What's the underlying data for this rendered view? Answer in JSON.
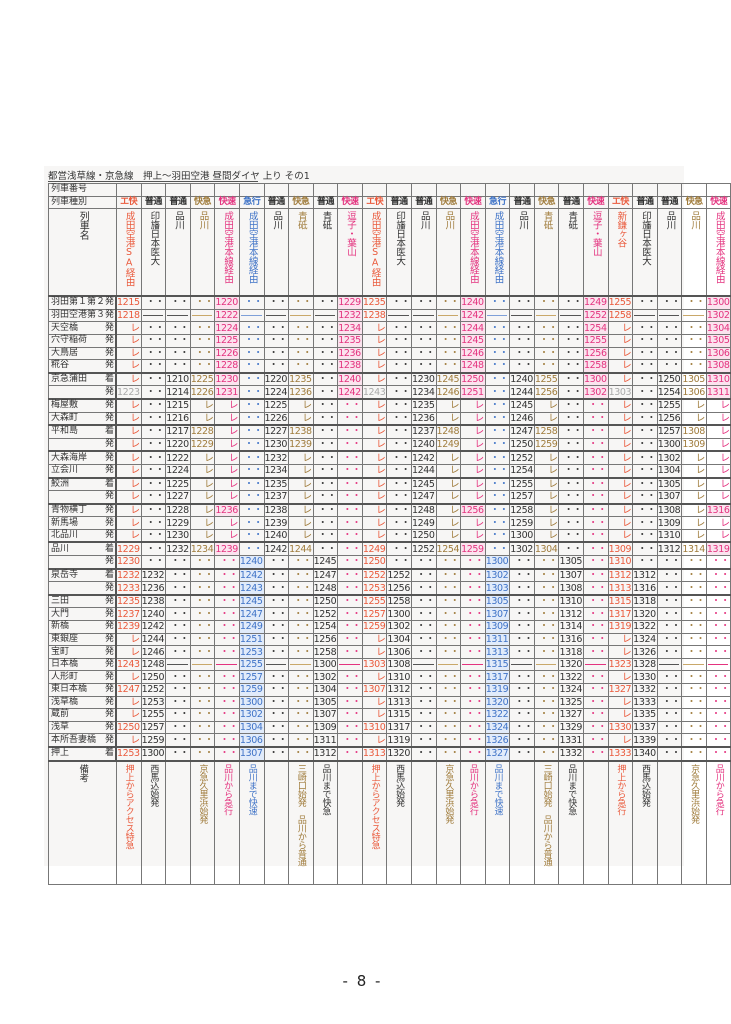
{
  "title": "都営浅草線・京急線　押上～羽田空港 昼間ダイヤ 上り その1",
  "row_labels": {
    "train_number": "列車番号",
    "train_type": "列車種別",
    "train_name": "列車名",
    "remarks": "備考"
  },
  "colors": {
    "orange": "#ea5a3c",
    "black": "#333333",
    "brown": "#a07c3c",
    "pink": "#e4337f",
    "blue": "#3f73c7"
  },
  "trains": [
    {
      "type": "エ快",
      "color": "orange",
      "dest": "成田空港SA経由",
      "remark": "押上からアクセス特急"
    },
    {
      "type": "普通",
      "color": "black",
      "dest": "印旛日本医大",
      "remark": "西馬込始発"
    },
    {
      "type": "普通",
      "color": "black",
      "dest": "品川",
      "remark": ""
    },
    {
      "type": "快急",
      "color": "brown",
      "dest": "品川",
      "remark": "京急久里浜始発"
    },
    {
      "type": "快速",
      "color": "pink",
      "dest": "成田空港本線経由",
      "remark": "品川から急行"
    },
    {
      "type": "急行",
      "color": "blue",
      "dest": "成田空港本線経由",
      "remark": "品川まで快速"
    },
    {
      "type": "普通",
      "color": "black",
      "dest": "品川",
      "remark": ""
    },
    {
      "type": "快急",
      "color": "brown",
      "dest": "青砥",
      "remark": "三崎口始発　品川から普通"
    },
    {
      "type": "普通",
      "color": "black",
      "dest": "青砥",
      "remark": "品川まで快急"
    },
    {
      "type": "快速",
      "color": "pink",
      "dest": "逗子・葉山",
      "remark": ""
    },
    {
      "type": "エ快",
      "color": "orange",
      "dest": "成田空港SA経由",
      "remark": "押上からアクセス特急"
    },
    {
      "type": "普通",
      "color": "black",
      "dest": "印旛日本医大",
      "remark": "西馬込始発"
    },
    {
      "type": "普通",
      "color": "black",
      "dest": "品川",
      "remark": ""
    },
    {
      "type": "快急",
      "color": "brown",
      "dest": "品川",
      "remark": "京急久里浜始発"
    },
    {
      "type": "快速",
      "color": "pink",
      "dest": "成田空港本線経由",
      "remark": "品川から急行"
    },
    {
      "type": "急行",
      "color": "blue",
      "dest": "成田空港本線経由",
      "remark": "品川まで快速"
    },
    {
      "type": "普通",
      "color": "black",
      "dest": "品川",
      "remark": ""
    },
    {
      "type": "快急",
      "color": "brown",
      "dest": "青砥",
      "remark": "三崎口始発　品川から普通"
    },
    {
      "type": "普通",
      "color": "black",
      "dest": "青砥",
      "remark": "品川まで快急"
    },
    {
      "type": "快速",
      "color": "pink",
      "dest": "逗子・葉山",
      "remark": ""
    },
    {
      "type": "エ快",
      "color": "orange",
      "dest": "新鎌ヶ谷",
      "remark": "押上から急行"
    },
    {
      "type": "普通",
      "color": "black",
      "dest": "印旛日本医大",
      "remark": "西馬込始発"
    },
    {
      "type": "普通",
      "color": "black",
      "dest": "品川",
      "remark": ""
    },
    {
      "type": "快急",
      "color": "brown",
      "dest": "品川",
      "remark": "京急久里浜始発"
    },
    {
      "type": "快速",
      "color": "pink",
      "dest": "成田空港本線経由",
      "remark": "品川から急行"
    }
  ],
  "rows": [
    {
      "station": "羽田第１第２",
      "ad": "発",
      "times": [
        "1215",
        "・・",
        "・・",
        "・・",
        "1220",
        "・・",
        "・・",
        "・・",
        "・・",
        "1229",
        "1235",
        "・・",
        "・・",
        "・・",
        "1240",
        "・・",
        "・・",
        "・・",
        "・・",
        "1249",
        "1255",
        "・・",
        "・・",
        "・・",
        "1300"
      ]
    },
    {
      "station": "羽田空港第３",
      "ad": "発",
      "times": [
        "1218",
        "—",
        "—",
        "—",
        "1222",
        "—",
        "—",
        "—",
        "—",
        "1232",
        "1238",
        "—",
        "—",
        "—",
        "1242",
        "—",
        "—",
        "—",
        "—",
        "1252",
        "1258",
        "—",
        "—",
        "—",
        "1302"
      ]
    },
    {
      "station": "天空橋",
      "ad": "発",
      "times": [
        "レ",
        "・・",
        "・・",
        "・・",
        "1224",
        "・・",
        "・・",
        "・・",
        "・・",
        "1234",
        "レ",
        "・・",
        "・・",
        "・・",
        "1244",
        "・・",
        "・・",
        "・・",
        "・・",
        "1254",
        "レ",
        "・・",
        "・・",
        "・・",
        "1304"
      ]
    },
    {
      "station": "穴守稲荷",
      "ad": "発",
      "times": [
        "レ",
        "・・",
        "・・",
        "・・",
        "1225",
        "・・",
        "・・",
        "・・",
        "・・",
        "1235",
        "レ",
        "・・",
        "・・",
        "・・",
        "1245",
        "・・",
        "・・",
        "・・",
        "・・",
        "1255",
        "レ",
        "・・",
        "・・",
        "・・",
        "1305"
      ]
    },
    {
      "station": "大鳥居",
      "ad": "発",
      "times": [
        "レ",
        "・・",
        "・・",
        "・・",
        "1226",
        "・・",
        "・・",
        "・・",
        "・・",
        "1236",
        "レ",
        "・・",
        "・・",
        "・・",
        "1246",
        "・・",
        "・・",
        "・・",
        "・・",
        "1256",
        "レ",
        "・・",
        "・・",
        "・・",
        "1306"
      ]
    },
    {
      "station": "糀谷",
      "ad": "発",
      "times": [
        "レ",
        "・・",
        "・・",
        "・・",
        "1228",
        "・・",
        "・・",
        "・・",
        "・・",
        "1238",
        "レ",
        "・・",
        "・・",
        "・・",
        "1248",
        "・・",
        "・・",
        "・・",
        "・・",
        "1258",
        "レ",
        "・・",
        "・・",
        "・・",
        "1308"
      ]
    },
    {
      "station": "京急蒲田",
      "ad": "着",
      "times": [
        "レ",
        "・・",
        "1210",
        "1225",
        "1230",
        "・・",
        "1220",
        "1235",
        "・・",
        "1240",
        "レ",
        "・・",
        "1230",
        "1245",
        "1250",
        "・・",
        "1240",
        "1255",
        "・・",
        "1300",
        "レ",
        "・・",
        "1250",
        "1305",
        "1310"
      ]
    },
    {
      "station": "",
      "ad": "発",
      "times": [
        "1223",
        "・・",
        "1214",
        "1226",
        "1231",
        "・・",
        "1224",
        "1236",
        "・・",
        "1242",
        "1243",
        "・・",
        "1234",
        "1246",
        "1251",
        "・・",
        "1244",
        "1256",
        "・・",
        "1302",
        "1303",
        "・・",
        "1254",
        "1306",
        "1311"
      ]
    },
    {
      "station": "梅屋敷",
      "ad": "発",
      "times": [
        "レ",
        "・・",
        "1215",
        "レ",
        "レ",
        "・・",
        "1225",
        "レ",
        "・・",
        "・・",
        "レ",
        "・・",
        "1235",
        "レ",
        "レ",
        "・・",
        "1245",
        "レ",
        "・・",
        "・・",
        "レ",
        "・・",
        "1255",
        "レ",
        "レ"
      ]
    },
    {
      "station": "大森町",
      "ad": "発",
      "times": [
        "レ",
        "・・",
        "1216",
        "レ",
        "レ",
        "・・",
        "1226",
        "レ",
        "・・",
        "・・",
        "レ",
        "・・",
        "1236",
        "レ",
        "レ",
        "・・",
        "1246",
        "レ",
        "・・",
        "・・",
        "レ",
        "・・",
        "1256",
        "レ",
        "レ"
      ]
    },
    {
      "station": "平和島",
      "ad": "着",
      "times": [
        "レ",
        "・・",
        "1217",
        "1228",
        "レ",
        "・・",
        "1227",
        "1238",
        "・・",
        "・・",
        "レ",
        "・・",
        "1237",
        "1248",
        "レ",
        "・・",
        "1247",
        "1258",
        "・・",
        "・・",
        "レ",
        "・・",
        "1257",
        "1308",
        "レ"
      ]
    },
    {
      "station": "",
      "ad": "発",
      "times": [
        "レ",
        "・・",
        "1220",
        "1229",
        "レ",
        "・・",
        "1230",
        "1239",
        "・・",
        "・・",
        "レ",
        "・・",
        "1240",
        "1249",
        "レ",
        "・・",
        "1250",
        "1259",
        "・・",
        "・・",
        "レ",
        "・・",
        "1300",
        "1309",
        "レ"
      ]
    },
    {
      "station": "大森海岸",
      "ad": "発",
      "times": [
        "レ",
        "・・",
        "1222",
        "レ",
        "レ",
        "・・",
        "1232",
        "レ",
        "・・",
        "・・",
        "レ",
        "・・",
        "1242",
        "レ",
        "レ",
        "・・",
        "1252",
        "レ",
        "・・",
        "・・",
        "レ",
        "・・",
        "1302",
        "レ",
        "レ"
      ]
    },
    {
      "station": "立会川",
      "ad": "発",
      "times": [
        "レ",
        "・・",
        "1224",
        "レ",
        "レ",
        "・・",
        "1234",
        "レ",
        "・・",
        "・・",
        "レ",
        "・・",
        "1244",
        "レ",
        "レ",
        "・・",
        "1254",
        "レ",
        "・・",
        "・・",
        "レ",
        "・・",
        "1304",
        "レ",
        "レ"
      ]
    },
    {
      "station": "鮫洲",
      "ad": "着",
      "times": [
        "レ",
        "・・",
        "1225",
        "レ",
        "レ",
        "・・",
        "1235",
        "レ",
        "・・",
        "・・",
        "レ",
        "・・",
        "1245",
        "レ",
        "レ",
        "・・",
        "1255",
        "レ",
        "・・",
        "・・",
        "レ",
        "・・",
        "1305",
        "レ",
        "レ"
      ]
    },
    {
      "station": "",
      "ad": "発",
      "times": [
        "レ",
        "・・",
        "1227",
        "レ",
        "レ",
        "・・",
        "1237",
        "レ",
        "・・",
        "・・",
        "レ",
        "・・",
        "1247",
        "レ",
        "レ",
        "・・",
        "1257",
        "レ",
        "・・",
        "・・",
        "レ",
        "・・",
        "1307",
        "レ",
        "レ"
      ]
    },
    {
      "station": "青物横丁",
      "ad": "発",
      "times": [
        "レ",
        "・・",
        "1228",
        "レ",
        "1236",
        "・・",
        "1238",
        "レ",
        "・・",
        "・・",
        "レ",
        "・・",
        "1248",
        "レ",
        "1256",
        "・・",
        "1258",
        "レ",
        "・・",
        "・・",
        "レ",
        "・・",
        "1308",
        "レ",
        "1316"
      ]
    },
    {
      "station": "新馬場",
      "ad": "発",
      "times": [
        "レ",
        "・・",
        "1229",
        "レ",
        "レ",
        "・・",
        "1239",
        "レ",
        "・・",
        "・・",
        "レ",
        "・・",
        "1249",
        "レ",
        "レ",
        "・・",
        "1259",
        "レ",
        "・・",
        "・・",
        "レ",
        "・・",
        "1309",
        "レ",
        "レ"
      ]
    },
    {
      "station": "北品川",
      "ad": "発",
      "times": [
        "レ",
        "・・",
        "1230",
        "レ",
        "レ",
        "・・",
        "1240",
        "レ",
        "・・",
        "・・",
        "レ",
        "・・",
        "1250",
        "レ",
        "レ",
        "・・",
        "1300",
        "レ",
        "・・",
        "・・",
        "レ",
        "・・",
        "1310",
        "レ",
        "レ"
      ]
    },
    {
      "station": "品川",
      "ad": "着",
      "times": [
        "1229",
        "・・",
        "1232",
        "1234",
        "1239",
        "・・",
        "1242",
        "1244",
        "・・",
        "・・",
        "1249",
        "・・",
        "1252",
        "1254",
        "1259",
        "・・",
        "1302",
        "1304",
        "・・",
        "・・",
        "1309",
        "・・",
        "1312",
        "1314",
        "1319"
      ]
    },
    {
      "station": "",
      "ad": "発",
      "times": [
        "1230",
        "・・",
        "・・",
        "・・",
        "・・",
        "1240",
        "・・",
        "・・",
        "1245",
        "・・",
        "1250",
        "・・",
        "・・",
        "・・",
        "・・",
        "1300",
        "・・",
        "・・",
        "1305",
        "・・",
        "1310",
        "・・",
        "・・",
        "・・",
        "・・"
      ]
    },
    {
      "station": "泉岳寺",
      "ad": "着",
      "times": [
        "1232",
        "1232",
        "・・",
        "・・",
        "・・",
        "1242",
        "・・",
        "・・",
        "1247",
        "・・",
        "1252",
        "1252",
        "・・",
        "・・",
        "・・",
        "1302",
        "・・",
        "・・",
        "1307",
        "・・",
        "1312",
        "1312",
        "・・",
        "・・",
        "・・"
      ]
    },
    {
      "station": "",
      "ad": "発",
      "times": [
        "1233",
        "1236",
        "・・",
        "・・",
        "・・",
        "1243",
        "・・",
        "・・",
        "1248",
        "・・",
        "1253",
        "1256",
        "・・",
        "・・",
        "・・",
        "1303",
        "・・",
        "・・",
        "1308",
        "・・",
        "1313",
        "1316",
        "・・",
        "・・",
        "・・"
      ]
    },
    {
      "station": "三田",
      "ad": "発",
      "times": [
        "1235",
        "1238",
        "・・",
        "・・",
        "・・",
        "1245",
        "・・",
        "・・",
        "1250",
        "・・",
        "1255",
        "1258",
        "・・",
        "・・",
        "・・",
        "1305",
        "・・",
        "・・",
        "1310",
        "・・",
        "1315",
        "1318",
        "・・",
        "・・",
        "・・"
      ]
    },
    {
      "station": "大門",
      "ad": "発",
      "times": [
        "1237",
        "1240",
        "・・",
        "・・",
        "・・",
        "1247",
        "・・",
        "・・",
        "1252",
        "・・",
        "1257",
        "1300",
        "・・",
        "・・",
        "・・",
        "1307",
        "・・",
        "・・",
        "1312",
        "・・",
        "1317",
        "1320",
        "・・",
        "・・",
        "・・"
      ]
    },
    {
      "station": "新橋",
      "ad": "発",
      "times": [
        "1239",
        "1242",
        "・・",
        "・・",
        "・・",
        "1249",
        "・・",
        "・・",
        "1254",
        "・・",
        "1259",
        "1302",
        "・・",
        "・・",
        "・・",
        "1309",
        "・・",
        "・・",
        "1314",
        "・・",
        "1319",
        "1322",
        "・・",
        "・・",
        "・・"
      ]
    },
    {
      "station": "東銀座",
      "ad": "発",
      "times": [
        "レ",
        "1244",
        "・・",
        "・・",
        "・・",
        "1251",
        "・・",
        "・・",
        "1256",
        "・・",
        "レ",
        "1304",
        "・・",
        "・・",
        "・・",
        "1311",
        "・・",
        "・・",
        "1316",
        "・・",
        "レ",
        "1324",
        "・・",
        "・・",
        "・・"
      ]
    },
    {
      "station": "宝町",
      "ad": "発",
      "times": [
        "レ",
        "1246",
        "・・",
        "・・",
        "・・",
        "1253",
        "・・",
        "・・",
        "1258",
        "・・",
        "レ",
        "1306",
        "・・",
        "・・",
        "・・",
        "1313",
        "・・",
        "・・",
        "1318",
        "・・",
        "レ",
        "1326",
        "・・",
        "・・",
        "・・"
      ]
    },
    {
      "station": "日本橋",
      "ad": "発",
      "times": [
        "1243",
        "1248",
        "—",
        "—",
        "—",
        "1255",
        "—",
        "—",
        "1300",
        "—",
        "1303",
        "1308",
        "—",
        "—",
        "—",
        "1315",
        "—",
        "—",
        "1320",
        "—",
        "1323",
        "1328",
        "—",
        "—",
        "—"
      ]
    },
    {
      "station": "人形町",
      "ad": "発",
      "times": [
        "レ",
        "1250",
        "・・",
        "・・",
        "・・",
        "1257",
        "・・",
        "・・",
        "1302",
        "・・",
        "レ",
        "1310",
        "・・",
        "・・",
        "・・",
        "1317",
        "・・",
        "・・",
        "1322",
        "・・",
        "レ",
        "1330",
        "・・",
        "・・",
        "・・"
      ]
    },
    {
      "station": "東日本橋",
      "ad": "発",
      "times": [
        "1247",
        "1252",
        "・・",
        "・・",
        "・・",
        "1259",
        "・・",
        "・・",
        "1304",
        "・・",
        "1307",
        "1312",
        "・・",
        "・・",
        "・・",
        "1319",
        "・・",
        "・・",
        "1324",
        "・・",
        "1327",
        "1332",
        "・・",
        "・・",
        "・・"
      ]
    },
    {
      "station": "浅草橋",
      "ad": "発",
      "times": [
        "レ",
        "1253",
        "・・",
        "・・",
        "・・",
        "1300",
        "・・",
        "・・",
        "1305",
        "・・",
        "レ",
        "1313",
        "・・",
        "・・",
        "・・",
        "1320",
        "・・",
        "・・",
        "1325",
        "・・",
        "レ",
        "1333",
        "・・",
        "・・",
        "・・"
      ]
    },
    {
      "station": "蔵前",
      "ad": "発",
      "times": [
        "レ",
        "1255",
        "・・",
        "・・",
        "・・",
        "1302",
        "・・",
        "・・",
        "1307",
        "・・",
        "レ",
        "1315",
        "・・",
        "・・",
        "・・",
        "1322",
        "・・",
        "・・",
        "1327",
        "・・",
        "レ",
        "1335",
        "・・",
        "・・",
        "・・"
      ]
    },
    {
      "station": "浅草",
      "ad": "発",
      "times": [
        "1250",
        "1257",
        "・・",
        "・・",
        "・・",
        "1304",
        "・・",
        "・・",
        "1309",
        "・・",
        "1310",
        "1317",
        "・・",
        "・・",
        "・・",
        "1324",
        "・・",
        "・・",
        "1329",
        "・・",
        "1330",
        "1337",
        "・・",
        "・・",
        "・・"
      ]
    },
    {
      "station": "本所吾妻橋",
      "ad": "発",
      "times": [
        "レ",
        "1259",
        "・・",
        "・・",
        "・・",
        "1306",
        "・・",
        "・・",
        "1311",
        "・・",
        "レ",
        "1319",
        "・・",
        "・・",
        "・・",
        "1326",
        "・・",
        "・・",
        "1331",
        "・・",
        "レ",
        "1339",
        "・・",
        "・・",
        "・・"
      ]
    },
    {
      "station": "押上",
      "ad": "着",
      "times": [
        "1253",
        "1300",
        "・・",
        "・・",
        "・・",
        "1307",
        "・・",
        "・・",
        "1312",
        "・・",
        "1313",
        "1320",
        "・・",
        "・・",
        "・・",
        "1327",
        "・・",
        "・・",
        "1332",
        "・・",
        "1333",
        "1340",
        "・・",
        "・・",
        "・・"
      ]
    }
  ],
  "footer": {
    "page": "- 8 -"
  }
}
